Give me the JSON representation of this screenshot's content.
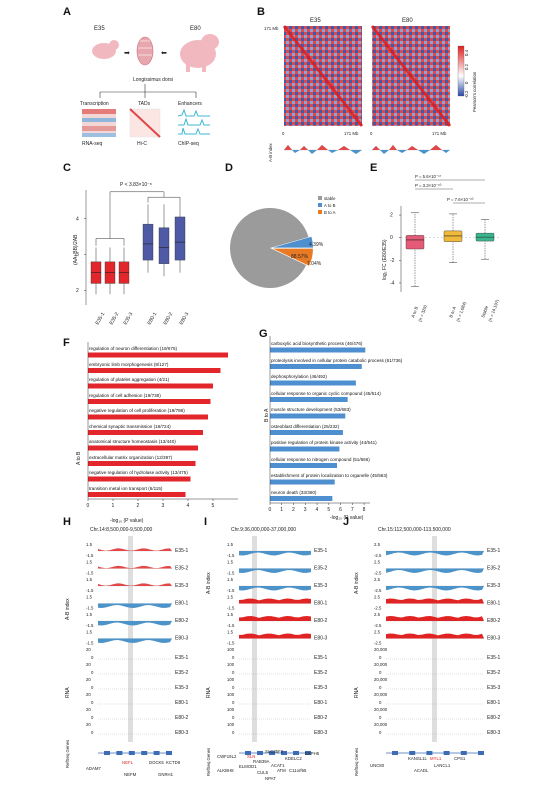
{
  "panels": {
    "A": {
      "label": "A",
      "stage1": "E35",
      "stage2": "E80",
      "muscle": "Longissimus dorsi",
      "transcription": "Transcription",
      "tads": "TADs",
      "enhancers": "Enhancers",
      "rnaseq": "RNA-seq",
      "hic": "Hi-C",
      "chipseq": "ChIP-seq"
    },
    "B": {
      "label": "B",
      "title1": "E35",
      "title2": "E80",
      "ymax": "171 Mb",
      "xmin": "0",
      "xmax": "171 Mb",
      "abindex": "A-B index",
      "colorbar_title": "Pearson's correlation",
      "colorbar_ticks": [
        "-0.2",
        "0",
        "0.2",
        "0.4"
      ]
    },
    "C": {
      "label": "C",
      "ylabel": "(AA+BB)/2AB",
      "pvalue": "P < 3.83×10⁻⁸",
      "yticks": [
        "2",
        "3",
        "4"
      ]
    },
    "D": {
      "label": "D",
      "legend": [
        "stable",
        "A to B",
        "B to A"
      ],
      "pct_stable": "88.57%",
      "pct_atob": "4.39%",
      "pct_btoa": "7.04%"
    },
    "E": {
      "label": "E",
      "ylabel": "log₂ FC (E80/E35)",
      "p1": "P = 5.6×10⁻¹⁷",
      "p2": "P = 3.3×10⁻¹⁰",
      "p3": "P = 7.6×10⁻¹⁰",
      "yticks": [
        "2",
        "0",
        "-2",
        "-4"
      ],
      "cats": [
        "A to B",
        "B to A",
        "Stable"
      ],
      "ns": [
        "(n = 329)",
        "(n = 1,084)",
        "(n = 14,197)"
      ]
    },
    "F": {
      "label": "F",
      "axis_label": "-log₁₀ (P value)",
      "side": "A to B",
      "xticks": [
        "0",
        "1",
        "2",
        "3",
        "4",
        "5"
      ],
      "terms": [
        "regulation of neuron differentiation (19/675)",
        "embryonic limb morphogenesis (8/127)",
        "regulation of platelet aggregation (4/21)",
        "regulation of cell adhesion (19/738)",
        "negative regulation of cell proliferation (19/788)",
        "chemical synaptic transmission (18/724)",
        "anatomical structure homeostasis (13/440)",
        "extracellular matrix organization (12/397)",
        "negative regulation of hydrolase activity (13/475)",
        "transition metal ion transport (6/115)"
      ]
    },
    "G": {
      "label": "G",
      "axis_label": "-log₁₀ (P value)",
      "side": "B to A",
      "xticks": [
        "0",
        "1",
        "2",
        "3",
        "4",
        "5",
        "6",
        "7",
        "8"
      ],
      "terms": [
        "carboxylic acid biosynthetic process (46/476)",
        "proteolysis involved in cellular protein catabolic process (61/736)",
        "dephosphorylation (46/492)",
        "cellular response to organic cyclic compound (45/514)",
        "muscle structure development (53/683)",
        "osteoblast differentiation (25/232)",
        "positive regulation of protein kinase activity (44/541)",
        "cellular response to nitrogen compound (51/666)",
        "establishment of protein localization to organelle (45/563)",
        "neuron death (33/360)"
      ]
    },
    "H": {
      "label": "H",
      "region": "Chr.14:8,500,000-9,500,000",
      "genes": [
        "ADAM7",
        "NEFL",
        "DOCK5",
        "KCTD9",
        "NEFM",
        "GNRH1"
      ]
    },
    "I": {
      "label": "I",
      "region": "Chr.9:36,000,000-37,000,000",
      "genes": [
        "CWF19L2",
        "SLN",
        "SLC35F2",
        "RAB39A",
        "ACAT1",
        "KDELC2",
        "EXPH5",
        "ALKBH8",
        "ELMOD1",
        "CUL5",
        "ATM",
        "C11orf65",
        "NPAT"
      ]
    },
    "J": {
      "label": "J",
      "region": "Chr.15:112,500,000-113,500,000",
      "genes": [
        "UNC80",
        "KANSL1L",
        "MYL1",
        "CPS1",
        "ACADL",
        "LANCL1"
      ]
    },
    "tracks": {
      "samples": [
        "E35-1",
        "E35-2",
        "E35-3",
        "E80-1",
        "E80-2",
        "E80-3"
      ],
      "abindex": "A-B index",
      "rna": "RNA",
      "refseq": "RefSeq Genes",
      "h_abticks": [
        "1.5",
        "-1.5"
      ],
      "h_rnaticks": [
        "20",
        "0"
      ],
      "i_abticks": [
        "1.5",
        "-1.5"
      ],
      "i_rnaticks": [
        "100",
        "0"
      ],
      "j_abticks": [
        "2.5",
        "-2.5"
      ],
      "j_rnaticks": [
        "20,000",
        "0"
      ]
    }
  },
  "chart_data": [
    {
      "panel": "C",
      "type": "box",
      "categories": [
        "E35-1",
        "E35-2",
        "E35-3",
        "E80-1",
        "E80-2",
        "E80-3"
      ],
      "boxes": [
        {
          "min": 1.9,
          "q1": 2.2,
          "median": 2.5,
          "q3": 2.8,
          "max": 3.2
        },
        {
          "min": 1.9,
          "q1": 2.2,
          "median": 2.5,
          "q3": 2.8,
          "max": 3.2
        },
        {
          "min": 1.9,
          "q1": 2.2,
          "median": 2.5,
          "q3": 2.8,
          "max": 3.2
        },
        {
          "min": 2.5,
          "q1": 2.85,
          "median": 3.3,
          "q3": 3.85,
          "max": 4.4
        },
        {
          "min": 2.4,
          "q1": 2.75,
          "median": 3.2,
          "q3": 3.75,
          "max": 4.4
        },
        {
          "min": 2.5,
          "q1": 2.85,
          "median": 3.35,
          "q3": 4.05,
          "max": 4.5
        }
      ],
      "colors": [
        "#e3262b",
        "#e3262b",
        "#e3262b",
        "#4e5aa6",
        "#4e5aa6",
        "#4e5aa6"
      ],
      "ylim": [
        1.6,
        4.8
      ]
    },
    {
      "panel": "D",
      "type": "pie",
      "labels": [
        "stable",
        "A to B",
        "B to A"
      ],
      "values": [
        88.57,
        4.39,
        7.04
      ],
      "colors": [
        "#9b9b9b",
        "#4e8fcf",
        "#e87a25"
      ]
    },
    {
      "panel": "E",
      "type": "box",
      "categories": [
        "A to B",
        "B to A",
        "Stable"
      ],
      "boxes": [
        {
          "min": -4.3,
          "q1": -1.0,
          "median": -0.2,
          "q3": 0.2,
          "max": 2.2
        },
        {
          "min": -2.2,
          "q1": -0.35,
          "median": 0.15,
          "q3": 0.6,
          "max": 2.1
        },
        {
          "min": -1.9,
          "q1": -0.3,
          "median": 0.05,
          "q3": 0.4,
          "max": 1.6
        }
      ],
      "colors": [
        "#e55a76",
        "#f0b93a",
        "#3bb58e"
      ],
      "ylim": [
        -4.8,
        2.8
      ]
    },
    {
      "panel": "F",
      "type": "bar",
      "orientation": "horizontal",
      "values": [
        5.6,
        5.3,
        5.0,
        4.9,
        4.8,
        4.6,
        4.4,
        4.3,
        4.1,
        3.9
      ],
      "color": "#e3262b",
      "xlim": [
        0,
        6
      ]
    },
    {
      "panel": "G",
      "type": "bar",
      "orientation": "horizontal",
      "values": [
        8.1,
        7.8,
        7.3,
        6.6,
        6.4,
        6.2,
        5.9,
        5.7,
        5.5,
        5.3
      ],
      "color": "#4e8fcf",
      "xlim": [
        0,
        8.5
      ]
    }
  ]
}
